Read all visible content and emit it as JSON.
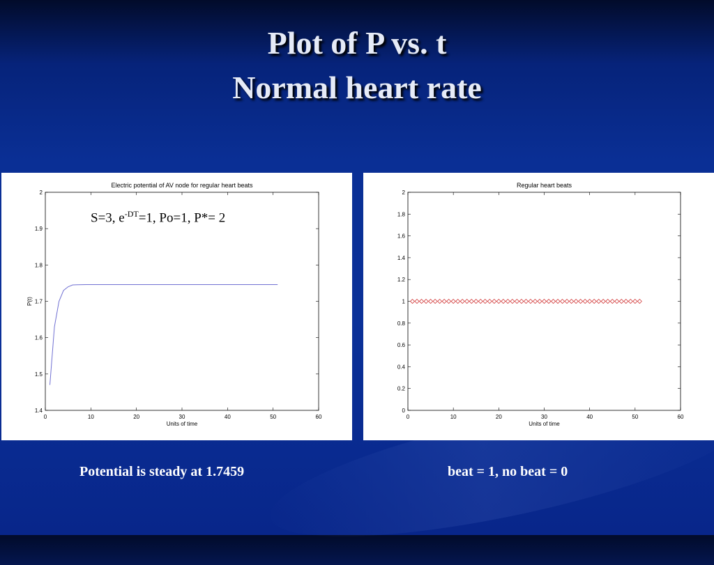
{
  "slide": {
    "title_line1": "Plot of P vs. t",
    "title_line2": "Normal heart rate",
    "caption_left": "Potential is steady at 1.7459",
    "caption_right": "beat = 1, no beat = 0"
  },
  "annotation": {
    "s_part": "S=3, e",
    "superscript": "-DT",
    "rest": "=1, Po=1, P*= 2"
  },
  "chart_data": [
    {
      "type": "line",
      "title": "Electric potential of AV node for regular heart beats",
      "xlabel": "Units of time",
      "ylabel": "P(t)",
      "xlim": [
        0,
        60
      ],
      "ylim": [
        1.4,
        2
      ],
      "xticks": [
        "0",
        "10",
        "20",
        "30",
        "40",
        "50",
        "60"
      ],
      "yticks": [
        "1.4",
        "1.5",
        "1.6",
        "1.7",
        "1.8",
        "1.9",
        "2"
      ],
      "color": "#6f6fd2",
      "series": [
        {
          "x": [
            1,
            2,
            3,
            4,
            5,
            6,
            7,
            8,
            9,
            10,
            11,
            12,
            13,
            14,
            15,
            16,
            17,
            18,
            19,
            20,
            21,
            22,
            23,
            24,
            25,
            26,
            27,
            28,
            29,
            30,
            31,
            32,
            33,
            34,
            35,
            36,
            37,
            38,
            39,
            40,
            41,
            42,
            43,
            44,
            45,
            46,
            47,
            48,
            49,
            50,
            51
          ],
          "values": [
            1.47,
            1.63,
            1.7,
            1.73,
            1.74,
            1.745,
            1.7455,
            1.7458,
            1.7459,
            1.7459,
            1.7459,
            1.7459,
            1.7459,
            1.7459,
            1.7459,
            1.7459,
            1.7459,
            1.7459,
            1.7459,
            1.7459,
            1.7459,
            1.7459,
            1.7459,
            1.7459,
            1.7459,
            1.7459,
            1.7459,
            1.7459,
            1.7459,
            1.7459,
            1.7459,
            1.7459,
            1.7459,
            1.7459,
            1.7459,
            1.7459,
            1.7459,
            1.7459,
            1.7459,
            1.7459,
            1.7459,
            1.7459,
            1.7459,
            1.7459,
            1.7459,
            1.7459,
            1.7459,
            1.7459,
            1.7459,
            1.7459,
            1.7459
          ]
        }
      ]
    },
    {
      "type": "scatter",
      "title": "Regular heart beats",
      "xlabel": "Units of time",
      "ylabel": "",
      "xlim": [
        0,
        60
      ],
      "ylim": [
        0,
        2
      ],
      "xticks": [
        "0",
        "10",
        "20",
        "30",
        "40",
        "50",
        "60"
      ],
      "yticks": [
        "0",
        "0.2",
        "0.4",
        "0.6",
        "0.8",
        "1",
        "1.2",
        "1.4",
        "1.6",
        "1.8",
        "2"
      ],
      "color": "#d23a3a",
      "marker": "diamond",
      "series": [
        {
          "x": [
            1,
            2,
            3,
            4,
            5,
            6,
            7,
            8,
            9,
            10,
            11,
            12,
            13,
            14,
            15,
            16,
            17,
            18,
            19,
            20,
            21,
            22,
            23,
            24,
            25,
            26,
            27,
            28,
            29,
            30,
            31,
            32,
            33,
            34,
            35,
            36,
            37,
            38,
            39,
            40,
            41,
            42,
            43,
            44,
            45,
            46,
            47,
            48,
            49,
            50,
            51
          ],
          "values": [
            1,
            1,
            1,
            1,
            1,
            1,
            1,
            1,
            1,
            1,
            1,
            1,
            1,
            1,
            1,
            1,
            1,
            1,
            1,
            1,
            1,
            1,
            1,
            1,
            1,
            1,
            1,
            1,
            1,
            1,
            1,
            1,
            1,
            1,
            1,
            1,
            1,
            1,
            1,
            1,
            1,
            1,
            1,
            1,
            1,
            1,
            1,
            1,
            1,
            1,
            1
          ]
        }
      ]
    }
  ]
}
